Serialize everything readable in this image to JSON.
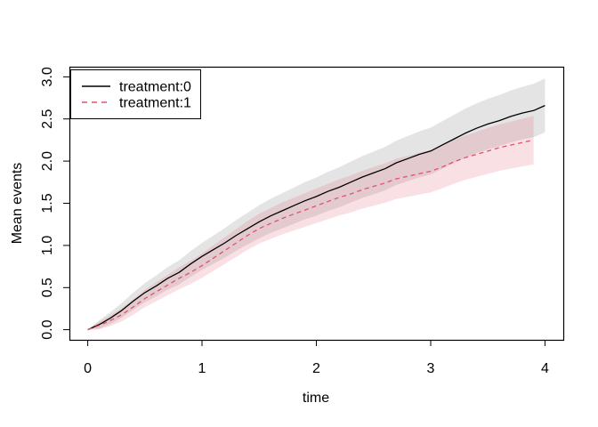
{
  "figure": {
    "background": "#ffffff",
    "plot_border_color": "#000000"
  },
  "chart_data": {
    "type": "line",
    "title": "",
    "xlabel": "time",
    "ylabel": "Mean events",
    "xlim": [
      0,
      4
    ],
    "ylim": [
      0,
      3.0
    ],
    "grid": false,
    "xticks": [
      0,
      1,
      2,
      3,
      4
    ],
    "xtick_labels": [
      "0",
      "1",
      "2",
      "3",
      "4"
    ],
    "ytick_values": [
      0,
      0.5,
      1,
      1.5,
      2,
      2.5,
      3
    ],
    "ytick_labels": [
      "0.0",
      "0.5",
      "1.0",
      "1.5",
      "2.0",
      "2.5",
      "3.0"
    ],
    "legend": {
      "position": "topleft",
      "entries": [
        {
          "label": "treatment:0",
          "color": "#000000",
          "style": "solid"
        },
        {
          "label": "treatment:1",
          "color": "#df536b",
          "style": "dashed"
        }
      ]
    },
    "series": [
      {
        "name": "treatment:0",
        "color": "#000000",
        "linestyle": "solid",
        "band_color": "#9e9e9e",
        "band_opacity": 0.28,
        "ci_halfwidth_coef_sqrt_t": 0.16,
        "x": [
          0,
          0.1,
          0.2,
          0.3,
          0.4,
          0.5,
          0.6,
          0.7,
          0.8,
          0.9,
          1.0,
          1.1,
          1.2,
          1.3,
          1.4,
          1.5,
          1.6,
          1.7,
          1.8,
          1.9,
          2.0,
          2.1,
          2.2,
          2.3,
          2.4,
          2.5,
          2.6,
          2.7,
          2.8,
          2.9,
          3.0,
          3.1,
          3.2,
          3.3,
          3.4,
          3.5,
          3.6,
          3.7,
          3.8,
          3.9,
          4.0
        ],
        "y": [
          0.0,
          0.06,
          0.14,
          0.23,
          0.34,
          0.44,
          0.52,
          0.61,
          0.68,
          0.78,
          0.87,
          0.95,
          1.03,
          1.12,
          1.2,
          1.28,
          1.35,
          1.41,
          1.47,
          1.53,
          1.58,
          1.64,
          1.69,
          1.75,
          1.81,
          1.86,
          1.91,
          1.98,
          2.03,
          2.08,
          2.12,
          2.19,
          2.26,
          2.33,
          2.39,
          2.44,
          2.48,
          2.53,
          2.57,
          2.6,
          2.66
        ]
      },
      {
        "name": "treatment:1",
        "color": "#df536b",
        "linestyle": "dashed",
        "band_color": "#df536b",
        "band_opacity": 0.18,
        "ci_halfwidth_coef_sqrt_t": 0.145,
        "x": [
          0,
          0.1,
          0.2,
          0.3,
          0.4,
          0.5,
          0.6,
          0.7,
          0.8,
          0.9,
          1.0,
          1.1,
          1.2,
          1.3,
          1.4,
          1.5,
          1.6,
          1.7,
          1.8,
          1.9,
          2.0,
          2.1,
          2.2,
          2.3,
          2.4,
          2.5,
          2.6,
          2.7,
          2.8,
          2.9,
          3.0,
          3.1,
          3.2,
          3.3,
          3.4,
          3.5,
          3.6,
          3.7,
          3.8,
          3.9
        ],
        "y": [
          0.0,
          0.05,
          0.11,
          0.18,
          0.27,
          0.37,
          0.45,
          0.53,
          0.61,
          0.68,
          0.76,
          0.85,
          0.94,
          1.03,
          1.12,
          1.2,
          1.26,
          1.32,
          1.37,
          1.42,
          1.47,
          1.52,
          1.57,
          1.61,
          1.66,
          1.7,
          1.74,
          1.79,
          1.82,
          1.85,
          1.88,
          1.93,
          1.99,
          2.04,
          2.08,
          2.12,
          2.16,
          2.19,
          2.22,
          2.25
        ]
      }
    ]
  }
}
